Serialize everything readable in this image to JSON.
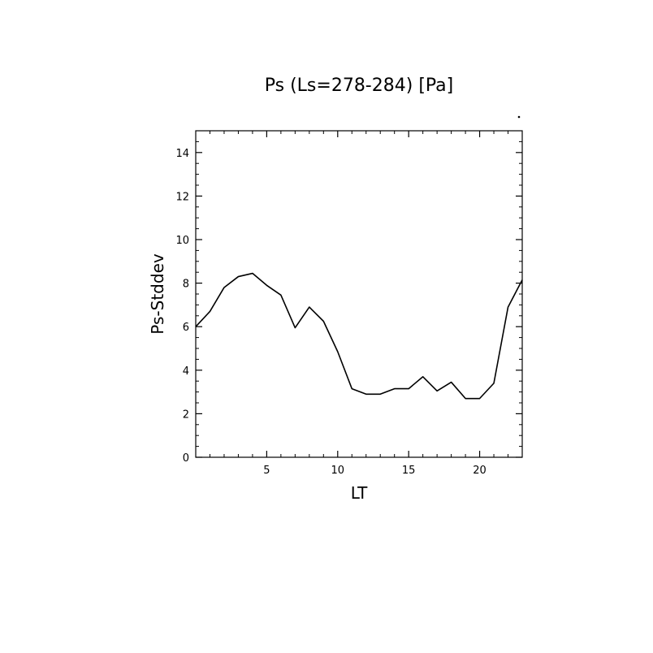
{
  "chart_data": {
    "type": "line",
    "title": "Ps (Ls=278-284) [Pa]",
    "xlabel": "LT",
    "ylabel": "Ps-Stddev",
    "xlim": [
      0,
      23
    ],
    "ylim": [
      0,
      15
    ],
    "x_ticks": [
      5,
      10,
      15,
      20
    ],
    "y_ticks": [
      0,
      2,
      4,
      6,
      8,
      10,
      12,
      14
    ],
    "x_tick_labels": [
      "5",
      "10",
      "15",
      "20"
    ],
    "y_tick_labels": [
      "0",
      "2",
      "4",
      "6",
      "8",
      "10",
      "12",
      "14"
    ],
    "grid": false,
    "line_color": "#000000",
    "series": [
      {
        "x": [
          0,
          1,
          2,
          3,
          4,
          5,
          6,
          7,
          8,
          9,
          10,
          11,
          12,
          13,
          14,
          15,
          16,
          17,
          18,
          19,
          20,
          21,
          22,
          23
        ],
        "values": [
          6.0,
          6.7,
          7.8,
          8.3,
          8.45,
          7.9,
          7.45,
          5.95,
          6.9,
          6.25,
          4.85,
          3.15,
          2.9,
          2.9,
          3.15,
          3.15,
          3.7,
          3.05,
          3.45,
          2.7,
          2.7,
          3.4,
          6.9,
          8.15
        ]
      }
    ]
  }
}
